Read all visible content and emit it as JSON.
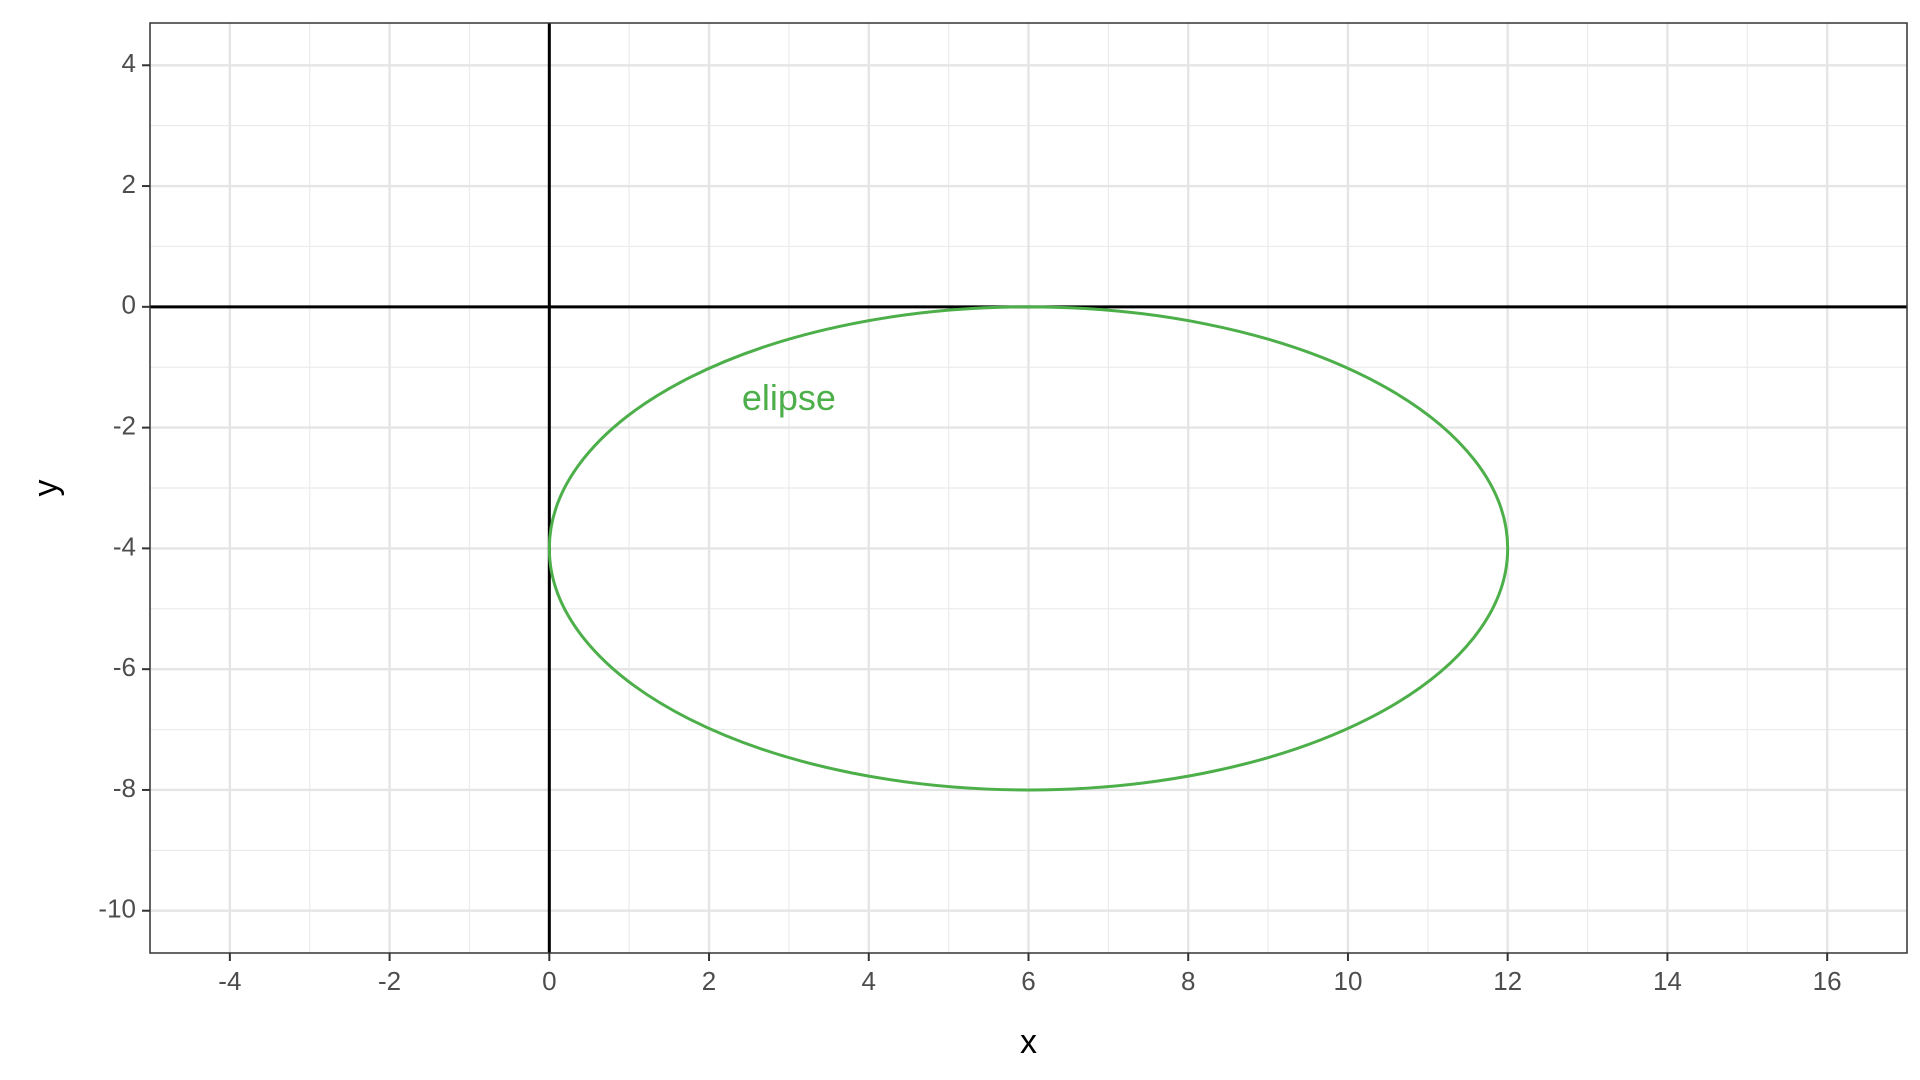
{
  "chart_data": {
    "type": "line",
    "xlabel": "x",
    "ylabel": "y",
    "xlim": [
      -5,
      17
    ],
    "ylim": [
      -10.7,
      4.7
    ],
    "x_ticks": [
      -4,
      -2,
      0,
      2,
      4,
      6,
      8,
      10,
      12,
      14,
      16
    ],
    "y_ticks": [
      4,
      2,
      0,
      -2,
      -4,
      -6,
      -8,
      -10
    ],
    "x_tick_labels": [
      "-4",
      "-2",
      "0",
      "2",
      "4",
      "6",
      "8",
      "10",
      "12",
      "14",
      "16"
    ],
    "y_tick_labels": [
      "4",
      "2",
      "0",
      "-2",
      "-4",
      "-6",
      "-8",
      "-10"
    ],
    "x_minor_step": 1,
    "y_minor_step": 1,
    "grid": true,
    "reference_lines": {
      "x": 0,
      "y": 0
    },
    "series": [
      {
        "shape": "ellipse",
        "center": [
          6,
          -4
        ],
        "semi_axis_x": 6,
        "semi_axis_y": 4,
        "color": "#4daf4a"
      }
    ],
    "annotations": [
      {
        "text": "elipse",
        "x": 3,
        "y": -1.55,
        "color": "#4daf4a"
      }
    ]
  }
}
